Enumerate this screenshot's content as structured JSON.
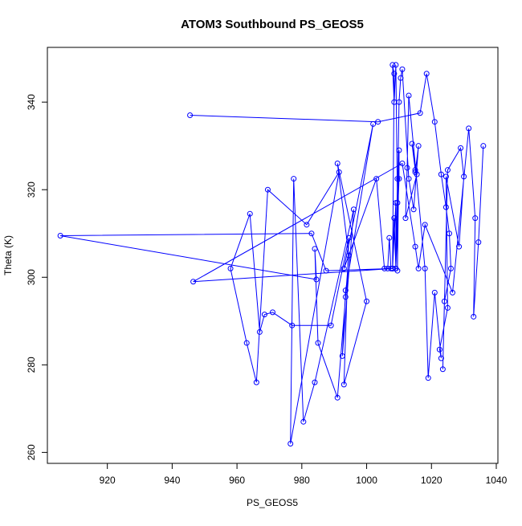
{
  "chart_data": {
    "type": "line",
    "title": "ATOM3 Southbound PS_GEOS5",
    "xlabel": "PS_GEOS5",
    "ylabel": "Theta (K)",
    "xlim": [
      901.5,
      1040.5
    ],
    "ylim": [
      257.5,
      352.5
    ],
    "x_ticks": [
      920,
      940,
      960,
      980,
      1000,
      1020,
      1040
    ],
    "y_ticks": [
      260,
      280,
      300,
      320,
      340
    ],
    "x_tick_labels": [
      "920",
      "940",
      "960",
      "980",
      "1000",
      "1020",
      "1040"
    ],
    "y_tick_labels": [
      "260",
      "280",
      "300",
      "320",
      "340"
    ],
    "grid": false,
    "legend": "none",
    "marker": "open-circle",
    "color": "#0000ff",
    "series": [
      {
        "x": [
          945.5,
          1003.5,
          1016.5,
          1018.5,
          1021.0,
          1023.0,
          1024.5,
          1025.5,
          1026.0,
          1024.0,
          1023.5,
          1025.0,
          1029.0,
          1030.0,
          1028.5,
          1024.5,
          1025.0,
          1022.5,
          1023.0,
          1021.0,
          1019.0,
          1018.0,
          1013.0,
          1012.5,
          1012.0,
          1015.5,
          1014.0,
          1015.0,
          1015.0,
          1016.0,
          1014.5,
          1013.0,
          1011.0,
          1010.5,
          1010.0,
          1009.5,
          1009.0,
          1008.5,
          1008.0,
          1008.5,
          1008.0,
          1009.0,
          1009.0,
          1009.5,
          1009.5,
          1010.0,
          1010.0,
          1009.0,
          1008.5,
          1008.0,
          1007.5,
          1007.0,
          1006.5,
          1005.5,
          1003.0,
          993.0,
          1002.0,
          993.5,
          992.5,
          996.0,
          984.0,
          980.5,
          977.5,
          976.5,
          991.5,
          981.5,
          969.5,
          966.0,
          963.0,
          958.0,
          964.0,
          967.0,
          968.5,
          971.0,
          977.0,
          989.0,
          994.5,
          993.0,
          1000.0,
          991.0,
          994.5,
          993.5,
          991.0,
          985.0,
          984.0,
          984.5,
          905.5,
          983.0,
          987.5,
          1008.0,
          946.5,
          1011.0,
          1015.0,
          1016.0,
          1018.0,
          1026.5,
          1031.5,
          1033.5,
          1033.0,
          1034.5,
          1036.0
        ],
        "y": [
          337,
          335.5,
          337.5,
          346.5,
          335.5,
          323.5,
          316,
          310,
          302,
          294.5,
          279,
          324.5,
          329.5,
          323,
          307,
          323,
          293,
          283.5,
          281.5,
          296.5,
          277,
          302,
          341.5,
          325,
          313.5,
          323.5,
          330.5,
          324.5,
          324,
          330,
          315.5,
          322.5,
          347.5,
          345.5,
          340,
          317,
          348.5,
          340,
          348.5,
          346.5,
          302,
          317,
          302,
          322.5,
          301.5,
          329,
          322.5,
          302,
          313.5,
          302,
          302,
          309,
          302,
          302,
          322.5,
          302,
          335,
          297,
          282,
          315.5,
          276,
          267,
          322.5,
          262,
          324,
          312,
          320,
          276,
          285,
          302,
          314.5,
          287.5,
          291.5,
          292,
          289,
          289,
          309,
          275.5,
          294.5,
          326,
          305,
          295.5,
          272.5,
          285,
          306.5,
          299.5,
          309.5,
          310,
          301.5,
          302,
          299,
          326,
          307,
          302,
          312,
          296.5,
          334,
          313.5,
          291,
          308,
          330
        ]
      }
    ]
  }
}
